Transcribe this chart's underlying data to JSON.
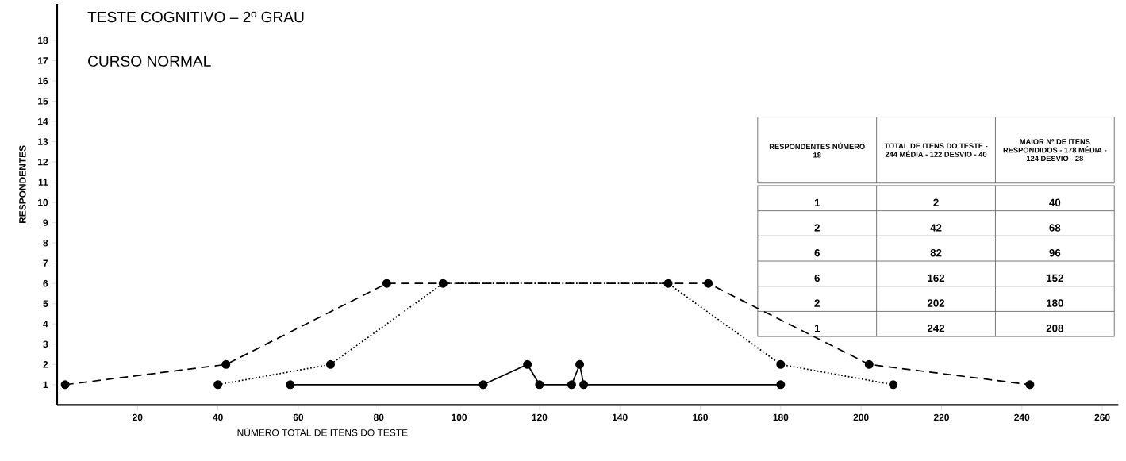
{
  "chart_data": {
    "type": "line",
    "title": "TESTE COGNITIVO – 2º GRAU",
    "subtitle": "CURSO NORMAL",
    "xlabel": "NÚMERO TOTAL DE ITENS DO TESTE",
    "ylabel": "RESPONDENTES",
    "xlim": [
      0,
      264
    ],
    "ylim": [
      0,
      19.8
    ],
    "xticks": [
      20,
      40,
      60,
      80,
      100,
      120,
      140,
      160,
      180,
      200,
      220,
      240,
      260
    ],
    "yticks": [
      1,
      2,
      3,
      4,
      5,
      6,
      7,
      8,
      9,
      10,
      11,
      12,
      13,
      14,
      15,
      16,
      17,
      18
    ],
    "marker": "circle",
    "series": [
      {
        "color": "#000000",
        "line_style": "dashed",
        "x": [
          2,
          42,
          82,
          162,
          202,
          242
        ],
        "values": [
          1,
          2,
          6,
          6,
          2,
          1
        ]
      },
      {
        "color": "#000000",
        "line_style": "dotted",
        "x": [
          40,
          68,
          96,
          152,
          180,
          208
        ],
        "values": [
          1,
          2,
          6,
          6,
          2,
          1
        ]
      },
      {
        "color": "#000000",
        "line_style": "solid",
        "x": [
          58,
          106,
          117,
          120,
          128,
          130,
          131,
          180
        ],
        "values": [
          1,
          1,
          2,
          1,
          1,
          2,
          1,
          1
        ]
      }
    ],
    "annotations": [
      "RESPONDENTES NÚMERO 18",
      "TOTAL DE ITENS DO TESTE - 244 MÉDIA - 122 DESVIO - 40",
      "MAIOR Nº DE ITENS RESPONDIDOS - 178 MÉDIA - 124 DESVIO - 28",
      "1",
      "2",
      "40",
      "2",
      "42",
      "68",
      "6",
      "82",
      "96",
      "6",
      "162",
      "152",
      "2",
      "202",
      "180",
      "1",
      "242",
      "208"
    ]
  }
}
